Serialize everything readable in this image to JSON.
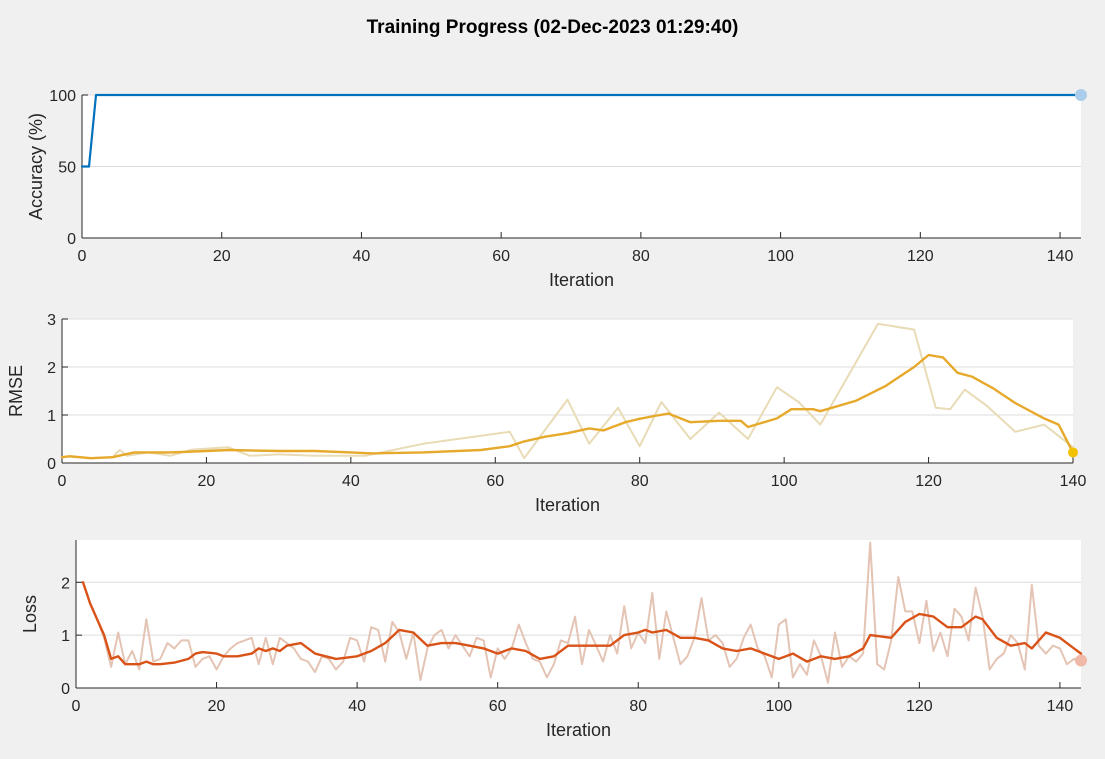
{
  "page_title": "Training Progress (02-Dec-2023 01:29:40)",
  "colors": {
    "accuracy": "#0072bd",
    "rmse_smoothed": "#e6a92b",
    "rmse_raw": "#e8dbb5",
    "loss_smoothed": "#d95319",
    "loss_raw": "#e4c4b4",
    "grid": "#dcdcdc",
    "axes_bg": "#ffffff"
  },
  "chart_data": [
    {
      "type": "line",
      "ylabel": "Accuracy (%)",
      "xlabel": "Iteration",
      "xlim": [
        0,
        143
      ],
      "ylim": [
        0,
        100
      ],
      "xticks": [
        0,
        20,
        40,
        60,
        80,
        100,
        120,
        140
      ],
      "yticks": [
        0,
        50,
        100
      ],
      "grid": "horizontal",
      "series": [
        {
          "role": "raw",
          "x": [
            0,
            1,
            2,
            3,
            143
          ],
          "y": [
            50,
            50,
            100,
            100,
            100
          ]
        }
      ],
      "end_marker": {
        "x": 143,
        "y": 100
      }
    },
    {
      "type": "line",
      "ylabel": "RMSE",
      "xlabel": "Iteration",
      "xlim": [
        0,
        140
      ],
      "ylim": [
        0,
        3
      ],
      "xticks": [
        0,
        20,
        40,
        60,
        80,
        100,
        120,
        140
      ],
      "yticks": [
        0,
        1,
        2,
        3
      ],
      "grid": "horizontal",
      "series": [
        {
          "role": "raw",
          "x": [
            1,
            4,
            7,
            8,
            9,
            12,
            15,
            18,
            23,
            26,
            30,
            35,
            42,
            50,
            62,
            64,
            70,
            73,
            77,
            80,
            83,
            87,
            91,
            95,
            99,
            102,
            105,
            113,
            118,
            121,
            123,
            125,
            128,
            132,
            136,
            140
          ],
          "y": [
            0.15,
            0.1,
            0.12,
            0.27,
            0.15,
            0.22,
            0.15,
            0.28,
            0.33,
            0.15,
            0.18,
            0.15,
            0.15,
            0.4,
            0.65,
            0.1,
            1.32,
            0.4,
            1.15,
            0.35,
            1.27,
            0.5,
            1.05,
            0.5,
            1.58,
            1.27,
            0.8,
            2.9,
            2.78,
            1.15,
            1.12,
            1.53,
            1.2,
            0.65,
            0.8,
            0.33
          ]
        },
        {
          "role": "smoothed",
          "x": [
            0,
            1,
            4,
            7,
            10,
            15,
            20,
            23,
            30,
            35,
            40,
            43,
            50,
            58,
            62,
            64,
            67,
            70,
            73,
            75,
            78,
            80,
            82,
            84,
            87,
            91,
            94,
            95,
            99,
            101,
            104,
            105,
            110,
            114,
            118,
            120,
            122,
            124,
            126,
            129,
            132,
            136,
            138,
            140
          ],
          "y": [
            0.12,
            0.14,
            0.1,
            0.12,
            0.22,
            0.22,
            0.25,
            0.27,
            0.25,
            0.25,
            0.22,
            0.2,
            0.22,
            0.27,
            0.35,
            0.45,
            0.55,
            0.62,
            0.72,
            0.68,
            0.85,
            0.92,
            0.98,
            1.03,
            0.85,
            0.88,
            0.88,
            0.75,
            0.93,
            1.12,
            1.12,
            1.08,
            1.3,
            1.6,
            2.0,
            2.25,
            2.2,
            1.88,
            1.8,
            1.55,
            1.25,
            0.93,
            0.8,
            0.22
          ]
        }
      ],
      "end_marker": {
        "x": 140,
        "y": 0.22
      }
    },
    {
      "type": "line",
      "ylabel": "Loss",
      "xlabel": "Iteration",
      "xlim": [
        0,
        143
      ],
      "ylim": [
        0,
        2.8
      ],
      "xticks": [
        0,
        20,
        40,
        60,
        80,
        100,
        120,
        140
      ],
      "yticks": [
        0,
        1,
        2
      ],
      "grid": "horizontal",
      "series": [
        {
          "role": "raw",
          "x": [
            1,
            2,
            3,
            4,
            5,
            6,
            7,
            8,
            9,
            10,
            11,
            12,
            13,
            14,
            15,
            16,
            17,
            18,
            19,
            20,
            21,
            22,
            23,
            24,
            25,
            26,
            27,
            28,
            29,
            30,
            31,
            32,
            33,
            34,
            35,
            36,
            37,
            38,
            39,
            40,
            41,
            42,
            43,
            44,
            45,
            46,
            47,
            48,
            49,
            50,
            51,
            52,
            53,
            54,
            55,
            56,
            57,
            58,
            59,
            60,
            61,
            62,
            63,
            64,
            65,
            66,
            67,
            68,
            69,
            70,
            71,
            72,
            73,
            74,
            75,
            76,
            77,
            78,
            79,
            80,
            81,
            82,
            83,
            84,
            85,
            86,
            87,
            88,
            89,
            90,
            91,
            92,
            93,
            94,
            95,
            96,
            97,
            98,
            99,
            100,
            101,
            102,
            103,
            104,
            105,
            106,
            107,
            108,
            109,
            110,
            111,
            112,
            113,
            114,
            115,
            116,
            117,
            118,
            119,
            120,
            121,
            122,
            123,
            124,
            125,
            126,
            127,
            128,
            129,
            130,
            131,
            132,
            133,
            134,
            135,
            136,
            137,
            138,
            139,
            140,
            141,
            142,
            143
          ],
          "y": [
            2.0,
            1.6,
            1.3,
            0.95,
            0.4,
            1.05,
            0.45,
            0.7,
            0.35,
            1.3,
            0.5,
            0.55,
            0.85,
            0.75,
            0.9,
            0.9,
            0.4,
            0.55,
            0.6,
            0.35,
            0.6,
            0.75,
            0.85,
            0.9,
            0.95,
            0.45,
            0.95,
            0.45,
            0.95,
            0.85,
            0.75,
            0.55,
            0.5,
            0.3,
            0.6,
            0.55,
            0.35,
            0.5,
            0.95,
            0.9,
            0.5,
            1.15,
            1.1,
            0.5,
            1.25,
            1.05,
            0.55,
            1.05,
            0.15,
            0.75,
            1.0,
            1.1,
            0.75,
            1.0,
            0.8,
            0.6,
            0.95,
            0.9,
            0.2,
            0.75,
            0.55,
            0.75,
            1.2,
            0.85,
            0.55,
            0.5,
            0.2,
            0.45,
            0.9,
            0.85,
            1.35,
            0.45,
            1.1,
            0.8,
            0.5,
            1.0,
            0.65,
            1.55,
            0.75,
            1.05,
            0.85,
            1.8,
            0.55,
            1.45,
            0.95,
            0.45,
            0.6,
            0.95,
            1.7,
            0.9,
            1.0,
            0.85,
            0.4,
            0.55,
            0.95,
            1.2,
            0.75,
            0.6,
            0.2,
            1.2,
            1.3,
            0.2,
            0.45,
            0.25,
            0.9,
            0.6,
            0.1,
            1.05,
            0.4,
            0.6,
            0.5,
            0.65,
            2.75,
            0.45,
            0.35,
            0.9,
            2.1,
            1.45,
            1.45,
            0.85,
            1.65,
            0.7,
            1.05,
            0.6,
            1.5,
            1.35,
            0.9,
            1.9,
            1.35,
            0.35,
            0.55,
            0.65,
            1.0,
            0.85,
            0.35,
            1.95,
            0.8,
            0.65,
            0.8,
            0.75,
            0.45,
            0.55,
            0.5
          ]
        },
        {
          "role": "smoothed",
          "x": [
            1,
            2,
            4,
            5,
            6,
            7,
            8,
            9,
            10,
            11,
            12,
            14,
            16,
            17,
            18,
            20,
            21,
            23,
            25,
            26,
            27,
            28,
            29,
            30,
            32,
            34,
            37,
            40,
            42,
            44,
            46,
            48,
            50,
            52,
            54,
            56,
            58,
            60,
            62,
            64,
            66,
            68,
            70,
            72,
            74,
            76,
            78,
            80,
            81,
            82,
            84,
            86,
            88,
            90,
            92,
            94,
            96,
            98,
            100,
            102,
            104,
            106,
            108,
            110,
            112,
            113,
            116,
            118,
            120,
            122,
            124,
            126,
            128,
            129,
            131,
            133,
            135,
            136,
            138,
            140,
            142,
            143
          ],
          "y": [
            2.0,
            1.6,
            1.0,
            0.55,
            0.6,
            0.45,
            0.45,
            0.45,
            0.5,
            0.45,
            0.45,
            0.48,
            0.55,
            0.65,
            0.68,
            0.65,
            0.6,
            0.6,
            0.65,
            0.75,
            0.7,
            0.75,
            0.7,
            0.8,
            0.85,
            0.65,
            0.55,
            0.6,
            0.7,
            0.85,
            1.1,
            1.05,
            0.8,
            0.85,
            0.85,
            0.8,
            0.75,
            0.65,
            0.75,
            0.7,
            0.55,
            0.6,
            0.8,
            0.8,
            0.8,
            0.8,
            1.0,
            1.05,
            1.1,
            1.05,
            1.1,
            0.95,
            0.95,
            0.9,
            0.75,
            0.7,
            0.75,
            0.65,
            0.55,
            0.65,
            0.5,
            0.6,
            0.55,
            0.6,
            0.75,
            1.0,
            0.95,
            1.25,
            1.4,
            1.35,
            1.15,
            1.15,
            1.35,
            1.3,
            0.95,
            0.8,
            0.85,
            0.75,
            1.05,
            0.95,
            0.75,
            0.65
          ]
        }
      ],
      "end_marker": {
        "x": 143,
        "y": 0.52
      }
    }
  ]
}
